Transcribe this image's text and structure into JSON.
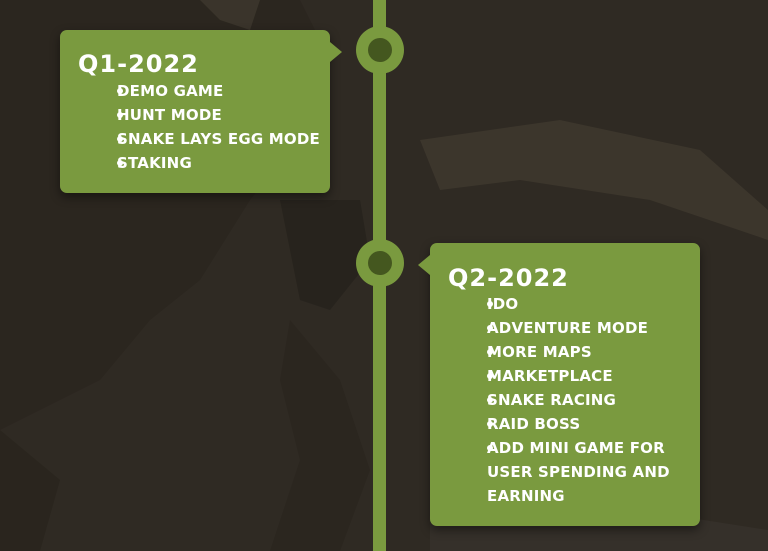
{
  "roadmap": {
    "quarters": [
      {
        "title": "Q1-2022",
        "items": [
          "DEMO GAME",
          "HUNT MODE",
          "SNAKE LAYS EGG MODE",
          "STAKING"
        ]
      },
      {
        "title": "Q2-2022",
        "items": [
          "IDO",
          "ADVENTURE MODE",
          "MORE MAPS",
          "MARKETPLACE",
          "SNAKE RACING",
          "RAID BOSS",
          "ADD MINI GAME FOR USER SPENDING AND EARNING"
        ]
      }
    ]
  },
  "colors": {
    "background": "#2f2a23",
    "card": "#7a9a3f",
    "node_inner": "#44571f",
    "text": "#ffffff"
  }
}
